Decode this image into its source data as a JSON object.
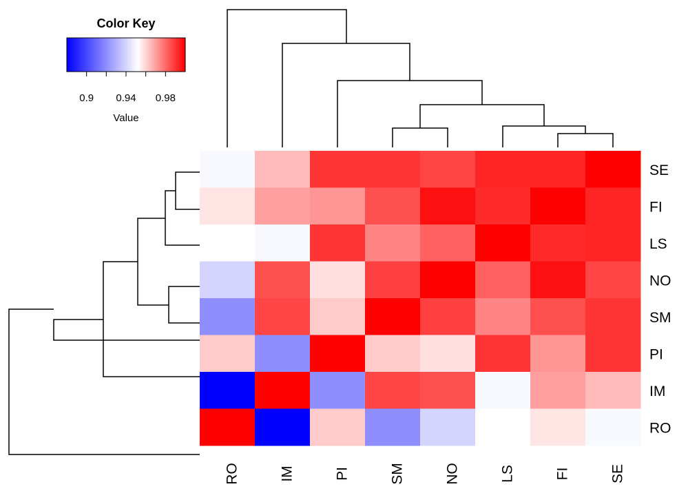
{
  "chart_data": {
    "type": "heatmap",
    "columns": [
      "RO",
      "IM",
      "PI",
      "SM",
      "NO",
      "LS",
      "FI",
      "SE"
    ],
    "rows": [
      "SE",
      "FI",
      "LS",
      "NO",
      "SM",
      "PI",
      "IM",
      "RO"
    ],
    "values": [
      [
        0.95,
        0.965,
        0.99,
        0.99,
        0.987,
        0.993,
        0.993,
        1.0
      ],
      [
        0.957,
        0.97,
        0.972,
        0.985,
        0.997,
        0.992,
        1.0,
        0.993
      ],
      [
        0.952,
        0.95,
        0.99,
        0.975,
        0.982,
        1.0,
        0.992,
        0.993
      ],
      [
        0.94,
        0.985,
        0.958,
        0.988,
        1.0,
        0.982,
        0.997,
        0.987
      ],
      [
        0.92,
        0.987,
        0.962,
        1.0,
        0.988,
        0.975,
        0.985,
        0.99
      ],
      [
        0.962,
        0.92,
        1.0,
        0.962,
        0.958,
        0.99,
        0.972,
        0.99
      ],
      [
        0.88,
        1.0,
        0.92,
        0.987,
        0.985,
        0.95,
        0.97,
        0.965
      ],
      [
        1.0,
        0.88,
        0.962,
        0.92,
        0.94,
        0.952,
        0.957,
        0.95
      ]
    ],
    "color_key": {
      "title": "Color Key",
      "xlabel": "Value",
      "ticks": [
        "0.9",
        "0.94",
        "0.98"
      ],
      "tick_values": [
        0.9,
        0.94,
        0.98
      ],
      "range": [
        0.88,
        1.0
      ],
      "colors": {
        "low": "#0000ff",
        "mid": "#ffffff",
        "high": "#ff0000"
      }
    },
    "column_dendrogram": {
      "merges": [
        [
          "SM",
          "NO"
        ],
        [
          "FI",
          "SE"
        ],
        [
          "LS",
          "FI,SE"
        ],
        [
          "SM,NO",
          "LS,FI,SE"
        ],
        [
          "PI",
          "SM,NO,LS,FI,SE"
        ],
        [
          "IM",
          "PI..."
        ],
        [
          "RO",
          "IM..."
        ]
      ]
    },
    "row_dendrogram": {
      "merges": [
        [
          "SE",
          "FI"
        ],
        [
          "SE,FI",
          "LS"
        ],
        [
          "NO",
          "SM"
        ],
        [
          "SE,FI,LS",
          "NO,SM"
        ],
        [
          "...",
          "PI"
        ],
        [
          "...",
          "IM"
        ],
        [
          "...",
          "RO"
        ]
      ]
    }
  }
}
